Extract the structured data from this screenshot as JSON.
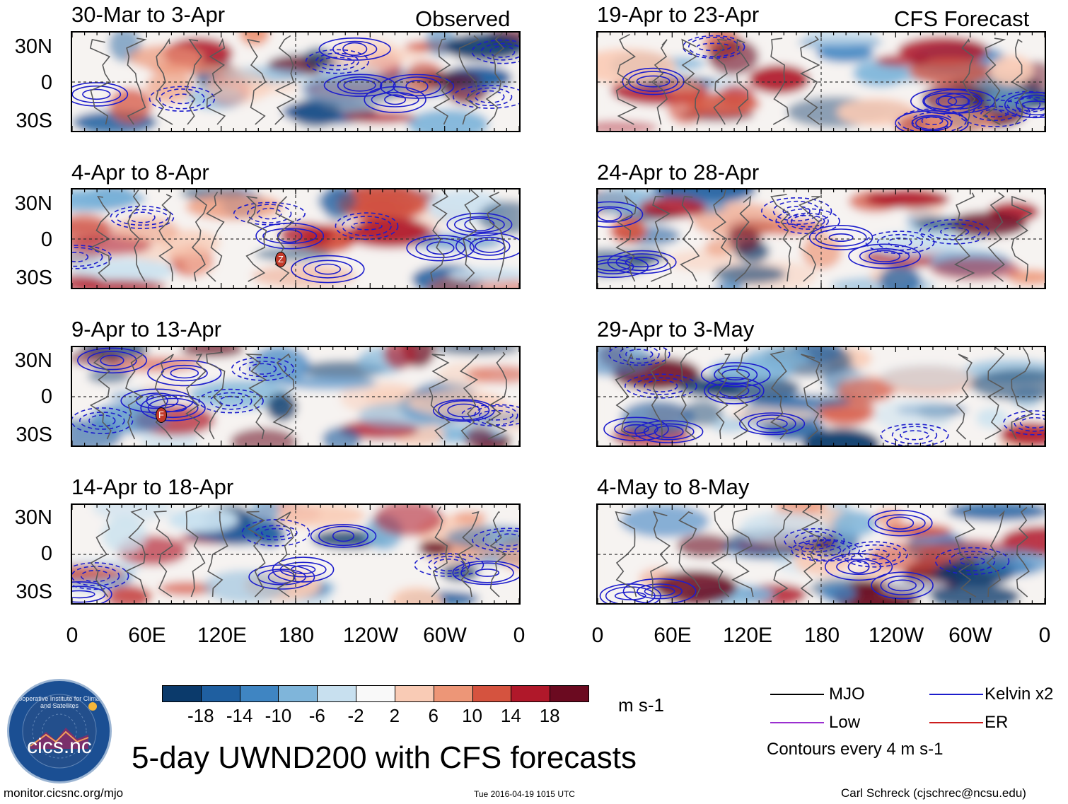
{
  "observed_label": "Observed",
  "forecast_label": "CFS Forecast",
  "lat_labels": [
    "30N",
    "0",
    "30S"
  ],
  "lon_labels": [
    "0",
    "60E",
    "120E",
    "180",
    "120W",
    "60W",
    "0"
  ],
  "panels": [
    {
      "title": "30-Mar to 3-Apr"
    },
    {
      "title": "4-Apr to 8-Apr"
    },
    {
      "title": "9-Apr to 13-Apr"
    },
    {
      "title": "14-Apr to 18-Apr"
    },
    {
      "title": "19-Apr to 23-Apr"
    },
    {
      "title": "24-Apr to 28-Apr"
    },
    {
      "title": "29-Apr to 3-May"
    },
    {
      "title": "4-May to 8-May"
    }
  ],
  "colorbar": {
    "unit": "m s-1",
    "tick_labels": [
      "-18",
      "-14",
      "-10",
      "-6",
      "-2",
      "2",
      "6",
      "10",
      "14",
      "18"
    ],
    "colors": [
      "#0b3a6b",
      "#1f5fa0",
      "#3f85c2",
      "#7fb5da",
      "#c8e0ef",
      "#f9f9f9",
      "#f9cbb5",
      "#ed9677",
      "#d5533f",
      "#b0182a",
      "#6b0a20"
    ]
  },
  "legend": {
    "items": [
      {
        "label": "MJO",
        "color": "#000000"
      },
      {
        "label": "Kelvin x2",
        "color": "#1d1dcc"
      },
      {
        "label": "Low",
        "color": "#9a2fd0"
      },
      {
        "label": "ER",
        "color": "#cc1d1d"
      }
    ],
    "note": "Contours every 4 m s-1"
  },
  "logo": {
    "text": "cics.nc",
    "ring_text": "Cooperative Institute for Climate and Satellites"
  },
  "main_title": "5-day UWND200 with CFS forecasts",
  "footer": {
    "url": "monitor.cicsnc.org/mjo",
    "timestamp": "Tue 2016-04-19 1015 UTC",
    "author": "Carl Schreck (cjschrec@ncsu.edu)"
  },
  "storm_labels": [
    {
      "panel": 1,
      "text": "Z"
    },
    {
      "panel": 2,
      "text": "F"
    }
  ]
}
